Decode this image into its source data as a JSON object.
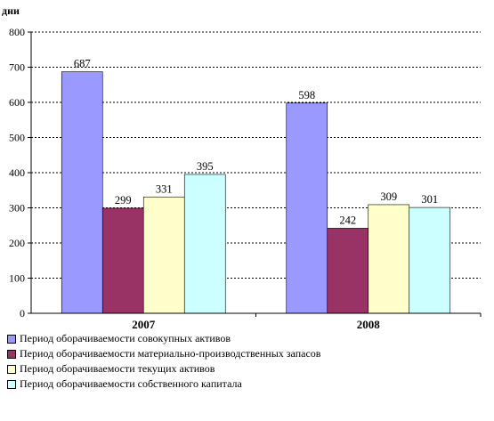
{
  "chart_data": {
    "type": "bar",
    "ylabel": "дни",
    "categories": [
      "2007",
      "2008"
    ],
    "ylim": [
      0,
      800
    ],
    "yticks": [
      0,
      100,
      200,
      300,
      400,
      500,
      600,
      700,
      800
    ],
    "grid": "horizontal dashed",
    "legend_position": "bottom",
    "series": [
      {
        "name": "Период оборачиваемости совокупных активов",
        "values": [
          687,
          598
        ],
        "color": "#9999ff"
      },
      {
        "name": "Период оборачиваемости материально-производственных запасов",
        "values": [
          299,
          242
        ],
        "color": "#993366"
      },
      {
        "name": "Период оборачиваемости текущих активов",
        "values": [
          331,
          309
        ],
        "color": "#ffffcc"
      },
      {
        "name": "Период оборачиваемости собственного капитала",
        "values": [
          395,
          301
        ],
        "color": "#ccffff"
      }
    ]
  }
}
